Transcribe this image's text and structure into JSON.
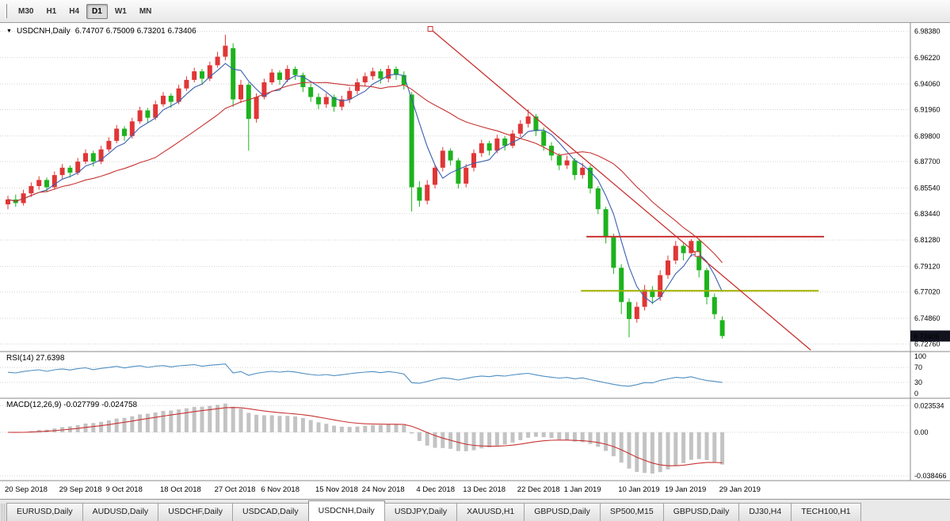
{
  "icons": {
    "symbol_dropdown": "▼"
  },
  "toolbar": {
    "timeframes": [
      {
        "label": "M30",
        "active": false
      },
      {
        "label": "H1",
        "active": false
      },
      {
        "label": "H4",
        "active": false
      },
      {
        "label": "D1",
        "active": true
      },
      {
        "label": "W1",
        "active": false
      },
      {
        "label": "MN",
        "active": false
      }
    ]
  },
  "chart": {
    "title": "USDCNH,Daily",
    "ohlc": "6.74707 6.75009 6.73201 6.73406",
    "current_price": "6.73406"
  },
  "chart_data": {
    "type": "candlestick",
    "symbol": "USDCNH",
    "timeframe": "Daily",
    "last_ohlc": {
      "open": 6.74707,
      "high": 6.75009,
      "low": 6.73201,
      "close": 6.73406
    },
    "price_range": [
      6.722,
      6.99
    ],
    "price_axis": [
      "6.98380",
      "6.96220",
      "6.94060",
      "6.91960",
      "6.89800",
      "6.87700",
      "6.85540",
      "6.83440",
      "6.81280",
      "6.79120",
      "6.77020",
      "6.74860",
      "6.72760"
    ],
    "date_labels": [
      {
        "label": "20 Sep 2018",
        "index": 0
      },
      {
        "label": "29 Sep 2018",
        "index": 7
      },
      {
        "label": "9 Oct 2018",
        "index": 13
      },
      {
        "label": "18 Oct 2018",
        "index": 20
      },
      {
        "label": "27 Oct 2018",
        "index": 27
      },
      {
        "label": "6 Nov 2018",
        "index": 33
      },
      {
        "label": "15 Nov 2018",
        "index": 40
      },
      {
        "label": "24 Nov 2018",
        "index": 46
      },
      {
        "label": "4 Dec 2018",
        "index": 53
      },
      {
        "label": "13 Dec 2018",
        "index": 59
      },
      {
        "label": "22 Dec 2018",
        "index": 66
      },
      {
        "label": "1 Jan 2019",
        "index": 72
      },
      {
        "label": "10 Jan 2019",
        "index": 79
      },
      {
        "label": "19 Jan 2019",
        "index": 85
      },
      {
        "label": "29 Jan 2019",
        "index": 92
      }
    ],
    "colors": {
      "bull": "#e03636",
      "bear": "#1db31d"
    },
    "candles": [
      [
        6.842,
        6.849,
        6.838,
        6.846
      ],
      [
        6.846,
        6.85,
        6.84,
        6.843
      ],
      [
        6.843,
        6.854,
        6.841,
        6.851
      ],
      [
        6.851,
        6.86,
        6.848,
        6.857
      ],
      [
        6.857,
        6.865,
        6.854,
        6.862
      ],
      [
        6.862,
        6.864,
        6.852,
        6.856
      ],
      [
        6.856,
        6.869,
        6.854,
        6.866
      ],
      [
        6.866,
        6.875,
        6.863,
        6.872
      ],
      [
        6.872,
        6.874,
        6.864,
        6.868
      ],
      [
        6.868,
        6.88,
        6.866,
        6.877
      ],
      [
        6.877,
        6.887,
        6.875,
        6.884
      ],
      [
        6.884,
        6.886,
        6.873,
        6.877
      ],
      [
        6.877,
        6.89,
        6.875,
        6.887
      ],
      [
        6.887,
        6.897,
        6.885,
        6.894
      ],
      [
        6.894,
        6.907,
        6.892,
        6.904
      ],
      [
        6.904,
        6.906,
        6.894,
        6.898
      ],
      [
        6.898,
        6.913,
        6.896,
        6.91
      ],
      [
        6.91,
        6.922,
        6.908,
        6.919
      ],
      [
        6.919,
        6.921,
        6.909,
        6.913
      ],
      [
        6.913,
        6.927,
        6.911,
        6.924
      ],
      [
        6.924,
        6.934,
        6.922,
        6.931
      ],
      [
        6.931,
        6.933,
        6.921,
        6.926
      ],
      [
        6.926,
        6.94,
        6.924,
        6.937
      ],
      [
        6.937,
        6.947,
        6.935,
        6.944
      ],
      [
        6.944,
        6.954,
        6.942,
        6.951
      ],
      [
        6.951,
        6.953,
        6.94,
        6.945
      ],
      [
        6.945,
        6.959,
        6.943,
        6.956
      ],
      [
        6.956,
        6.967,
        6.954,
        6.963
      ],
      [
        6.963,
        6.981,
        6.96,
        6.972
      ],
      [
        6.97,
        6.974,
        6.922,
        6.928
      ],
      [
        6.928,
        6.944,
        6.925,
        6.94
      ],
      [
        6.94,
        6.942,
        6.886,
        6.912
      ],
      [
        6.912,
        6.933,
        6.909,
        6.93
      ],
      [
        6.93,
        6.945,
        6.928,
        6.942
      ],
      [
        6.942,
        6.953,
        6.94,
        6.95
      ],
      [
        6.95,
        6.952,
        6.94,
        6.944
      ],
      [
        6.944,
        6.956,
        6.942,
        6.953
      ],
      [
        6.953,
        6.955,
        6.944,
        6.948
      ],
      [
        6.948,
        6.95,
        6.934,
        6.938
      ],
      [
        6.938,
        6.941,
        6.926,
        6.93
      ],
      [
        6.93,
        6.933,
        6.92,
        6.924
      ],
      [
        6.924,
        6.933,
        6.921,
        6.93
      ],
      [
        6.93,
        6.932,
        6.918,
        6.922
      ],
      [
        6.922,
        6.931,
        6.919,
        6.928
      ],
      [
        6.928,
        6.938,
        6.925,
        6.935
      ],
      [
        6.935,
        6.945,
        6.932,
        6.942
      ],
      [
        6.942,
        6.95,
        6.939,
        6.947
      ],
      [
        6.947,
        6.954,
        6.944,
        6.951
      ],
      [
        6.951,
        6.953,
        6.941,
        6.945
      ],
      [
        6.945,
        6.956,
        6.942,
        6.953
      ],
      [
        6.953,
        6.955,
        6.944,
        6.948
      ],
      [
        6.948,
        6.951,
        6.936,
        6.94
      ],
      [
        6.932,
        6.934,
        6.836,
        6.856
      ],
      [
        6.856,
        6.861,
        6.84,
        6.845
      ],
      [
        6.845,
        6.862,
        6.842,
        6.858
      ],
      [
        6.858,
        6.875,
        6.855,
        6.872
      ],
      [
        6.872,
        6.889,
        6.869,
        6.886
      ],
      [
        6.886,
        6.888,
        6.874,
        6.878
      ],
      [
        6.878,
        6.88,
        6.855,
        6.859
      ],
      [
        6.859,
        6.875,
        6.856,
        6.872
      ],
      [
        6.872,
        6.887,
        6.869,
        6.884
      ],
      [
        6.884,
        6.895,
        6.881,
        6.892
      ],
      [
        6.892,
        6.894,
        6.882,
        6.886
      ],
      [
        6.886,
        6.899,
        6.884,
        6.896
      ],
      [
        6.896,
        6.898,
        6.886,
        6.89
      ],
      [
        6.89,
        6.903,
        6.888,
        6.9
      ],
      [
        6.9,
        6.911,
        6.897,
        6.908
      ],
      [
        6.908,
        6.92,
        6.905,
        6.914
      ],
      [
        6.914,
        6.916,
        6.898,
        6.902
      ],
      [
        6.902,
        6.905,
        6.886,
        6.89
      ],
      [
        6.89,
        6.893,
        6.878,
        6.882
      ],
      [
        6.882,
        6.884,
        6.87,
        6.874
      ],
      [
        6.874,
        6.882,
        6.871,
        6.878
      ],
      [
        6.878,
        6.88,
        6.862,
        6.866
      ],
      [
        6.866,
        6.876,
        6.863,
        6.872
      ],
      [
        6.872,
        6.874,
        6.851,
        6.855
      ],
      [
        6.855,
        6.857,
        6.834,
        6.838
      ],
      [
        6.838,
        6.84,
        6.81,
        6.815
      ],
      [
        6.815,
        6.818,
        6.785,
        6.79
      ],
      [
        6.79,
        6.793,
        6.752,
        6.762
      ],
      [
        6.762,
        6.765,
        6.733,
        6.748
      ],
      [
        6.748,
        6.762,
        6.745,
        6.758
      ],
      [
        6.758,
        6.776,
        6.755,
        6.772
      ],
      [
        6.772,
        6.775,
        6.76,
        6.766
      ],
      [
        6.766,
        6.788,
        6.763,
        6.784
      ],
      [
        6.784,
        6.8,
        6.781,
        6.796
      ],
      [
        6.796,
        6.812,
        6.793,
        6.808
      ],
      [
        6.808,
        6.81,
        6.796,
        6.802
      ],
      [
        6.802,
        6.8135,
        6.799,
        6.812
      ],
      [
        6.812,
        6.814,
        6.782,
        6.788
      ],
      [
        6.788,
        6.79,
        6.76,
        6.766
      ],
      [
        6.766,
        6.769,
        6.748,
        6.752
      ],
      [
        6.74707,
        6.75009,
        6.73201,
        6.73406
      ]
    ],
    "overlays": {
      "ma_fast": {
        "period": 5,
        "color": "#3a5fae"
      },
      "ma_slow": {
        "period": 20,
        "color": "#c83232"
      },
      "trendline": {
        "from": {
          "index": 54.4,
          "price": 6.9858
        },
        "to": {
          "index": 103.4,
          "price": 6.7225
        },
        "color": "#c83232",
        "handles": [
          {
            "index": 54.4,
            "price": 6.9858
          },
          {
            "index": 88.8,
            "price": 6.8013
          }
        ]
      },
      "hlines": [
        {
          "price": 6.8155,
          "from_index": 74.5,
          "to_index": 105.1,
          "color": "#c83232"
        },
        {
          "price": 6.7712,
          "from_index": 73.8,
          "to_index": 104.4,
          "color": "#a2b300"
        }
      ]
    },
    "rsi": {
      "label": "RSI(14) 27.6398",
      "period": 14,
      "current_value": "27.6398",
      "levels": [
        100,
        70,
        30,
        0
      ],
      "color": "#4e8ec1"
    },
    "macd": {
      "label": "MACD(12,26,9) -0.027799 -0.024758",
      "fast": 12,
      "slow": 26,
      "signal": 9,
      "current_values": "-0.027799 -0.024758",
      "axis": [
        "0.023534",
        "0.00",
        "-0.038466"
      ],
      "hist_color": "#c3c3c3",
      "signal_color": "#c83232"
    }
  },
  "tab_bar": {
    "tabs": [
      {
        "label": "EURUSD,Daily",
        "active": false
      },
      {
        "label": "AUDUSD,Daily",
        "active": false
      },
      {
        "label": "USDCHF,Daily",
        "active": false
      },
      {
        "label": "USDCAD,Daily",
        "active": false
      },
      {
        "label": "USDCNH,Daily",
        "active": true
      },
      {
        "label": "USDJPY,Daily",
        "active": false
      },
      {
        "label": "XAUUSD,H1",
        "active": false
      },
      {
        "label": "GBPUSD,Daily",
        "active": false
      },
      {
        "label": "SP500,M15",
        "active": false
      },
      {
        "label": "GBPUSD,Daily",
        "active": false
      },
      {
        "label": "DJ30,H4",
        "active": false
      },
      {
        "label": "TECH100,H1",
        "active": false
      }
    ]
  }
}
